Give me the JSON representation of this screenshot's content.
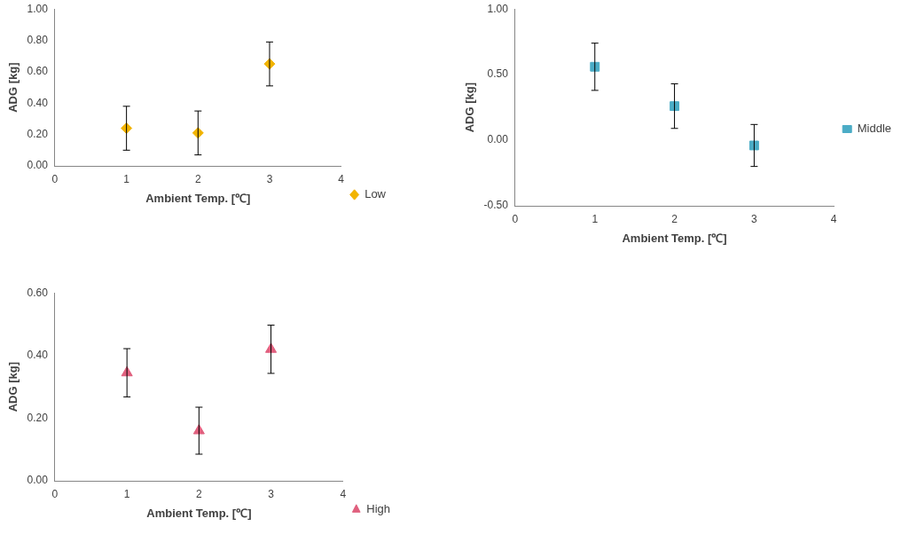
{
  "chart_data": [
    {
      "type": "scatter",
      "x_label": "Ambient Temp. [℃]",
      "y_label": "ADG [kg]",
      "x": [
        1,
        2,
        3
      ],
      "series": [
        {
          "name": "Low",
          "color": "#f2b400",
          "marker": "diamond",
          "values": [
            0.24,
            0.21,
            0.65
          ],
          "errors": [
            0.14,
            0.14,
            0.14
          ]
        }
      ],
      "xlim": [
        0,
        4
      ],
      "xticks": [
        0,
        1,
        2,
        3,
        4
      ],
      "ylim": [
        0,
        1
      ],
      "yticks": [
        {
          "value": 0,
          "label": "0.00"
        },
        {
          "value": 0.2,
          "label": "0.20"
        },
        {
          "value": 0.4,
          "label": "0.40"
        },
        {
          "value": 0.6,
          "label": "0.60"
        },
        {
          "value": 0.8,
          "label": "0.80"
        },
        {
          "value": 1,
          "label": "1.00"
        }
      ],
      "grid": false,
      "legend": "lower right"
    },
    {
      "type": "scatter",
      "x_label": "Ambient Temp. [℃]",
      "y_label": "ADG [kg]",
      "x": [
        1,
        2,
        3
      ],
      "series": [
        {
          "name": "Middle",
          "color": "#4bacc6",
          "marker": "square",
          "values": [
            0.56,
            0.26,
            -0.04
          ],
          "errors": [
            0.18,
            0.17,
            0.16
          ]
        }
      ],
      "xlim": [
        0,
        4
      ],
      "xticks": [
        0,
        1,
        2,
        3,
        4
      ],
      "ylim": [
        -0.5,
        1
      ],
      "yticks": [
        {
          "value": -0.5,
          "label": "-0.50"
        },
        {
          "value": 0,
          "label": "0.00"
        },
        {
          "value": 0.5,
          "label": "0.50"
        },
        {
          "value": 1,
          "label": "1.00"
        }
      ],
      "grid": false,
      "legend": "right"
    },
    {
      "type": "scatter",
      "x_label": "Ambient Temp. [℃]",
      "y_label": "ADG [kg]",
      "x": [
        1,
        2,
        3
      ],
      "series": [
        {
          "name": "High",
          "color": "#e0607e",
          "marker": "triangle",
          "values": [
            0.345,
            0.16,
            0.42
          ],
          "errors": [
            0.077,
            0.075,
            0.077
          ]
        }
      ],
      "xlim": [
        0,
        4
      ],
      "xticks": [
        0,
        1,
        2,
        3,
        4
      ],
      "ylim": [
        0,
        0.6
      ],
      "yticks": [
        {
          "value": 0,
          "label": "0.00"
        },
        {
          "value": 0.2,
          "label": "0.20"
        },
        {
          "value": 0.4,
          "label": "0.40"
        },
        {
          "value": 0.6,
          "label": "0.60"
        }
      ],
      "grid": false,
      "legend": "lower right"
    }
  ]
}
